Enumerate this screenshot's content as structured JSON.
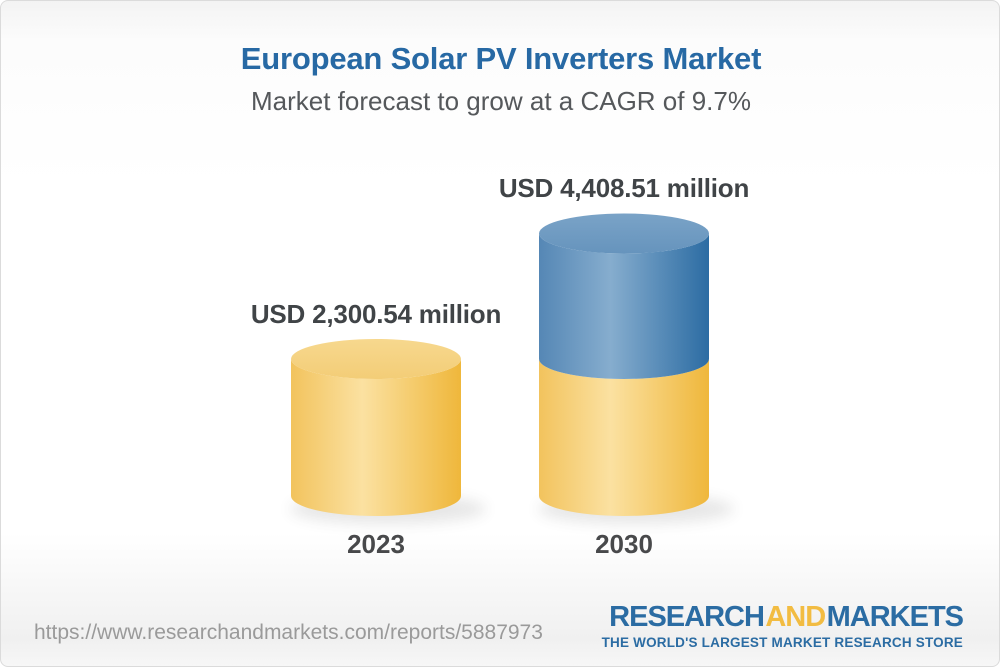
{
  "header": {
    "title": "European Solar PV Inverters Market",
    "subtitle": "Market forecast to grow at a CAGR of 9.7%"
  },
  "chart_data": {
    "type": "bar",
    "style": "3d-cylinder-stacked",
    "categories": [
      "2023",
      "2030"
    ],
    "values": [
      2300.54,
      4408.51
    ],
    "value_labels": [
      "USD 2,300.54 million",
      "USD 4,408.51 million"
    ],
    "title": "European Solar PV Inverters Market",
    "subtitle": "Market forecast to grow at a CAGR of 9.7%",
    "cagr_percent": 9.7,
    "unit": "USD million",
    "xlabel": "",
    "ylabel": "",
    "ylim": [
      0,
      4800
    ],
    "grid": false,
    "legend": "none",
    "colors": {
      "base_segment": "#F6CA6B",
      "growth_segment": "#5E8FBB"
    }
  },
  "footer": {
    "url": "https://www.researchandmarkets.com/reports/5887973",
    "logo": {
      "part1": "RESEARCH",
      "part2": "AND",
      "part3": "MARKETS",
      "tagline": "THE WORLD'S LARGEST MARKET RESEARCH STORE"
    }
  }
}
